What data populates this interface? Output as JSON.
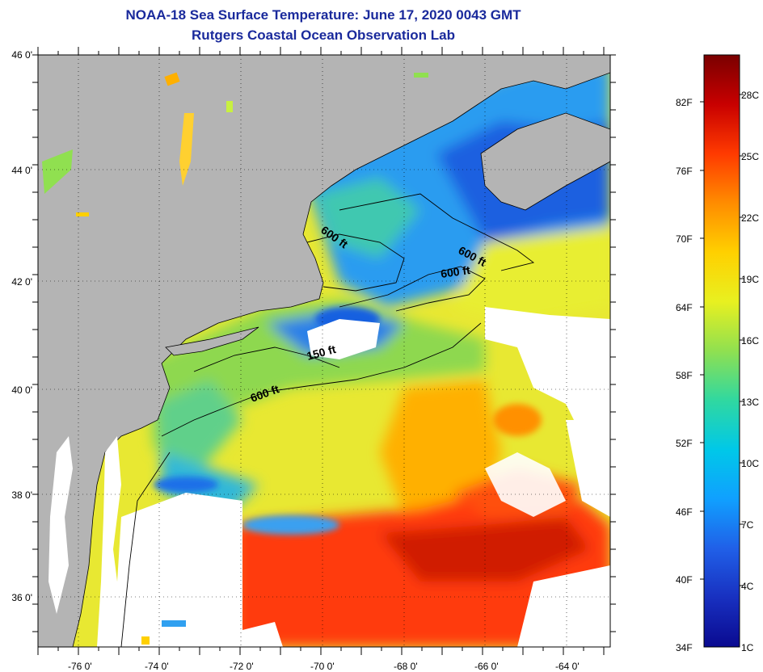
{
  "title_line1": "NOAA-18 Sea Surface Temperature:  June 17, 2020 0043 GMT",
  "title_line2": "Rutgers Coastal Ocean Observation Lab",
  "lat_labels": [
    "46 0'",
    "44 0'",
    "42 0'",
    "40 0'",
    "38 0'",
    "36 0'"
  ],
  "lon_labels": [
    "-76 0'",
    "-74 0'",
    "-72 0'",
    "-70 0'",
    "-68 0'",
    "-66 0'",
    "-64 0'"
  ],
  "colorbar": {
    "fahrenheit": [
      "82F",
      "76F",
      "70F",
      "64F",
      "58F",
      "52F",
      "46F",
      "40F",
      "34F"
    ],
    "celsius": [
      "28C",
      "25C",
      "22C",
      "19C",
      "16C",
      "13C",
      "10C",
      "7C",
      "4C",
      "1C"
    ],
    "stops": [
      "#7a0000",
      "#c80000",
      "#ff3a00",
      "#ff8c00",
      "#ffd000",
      "#e8f020",
      "#90e050",
      "#30d8a0",
      "#00c8e8",
      "#10a0ff",
      "#2060e8",
      "#1830c0",
      "#0a0a90"
    ]
  },
  "isobath_labels": [
    "600 ft",
    "600 ft",
    "600 ft",
    "150 ft",
    "600 ft"
  ],
  "colors": {
    "land": "#b4b4b4",
    "cloud": "#ffffff",
    "title": "#1a2a9c"
  }
}
